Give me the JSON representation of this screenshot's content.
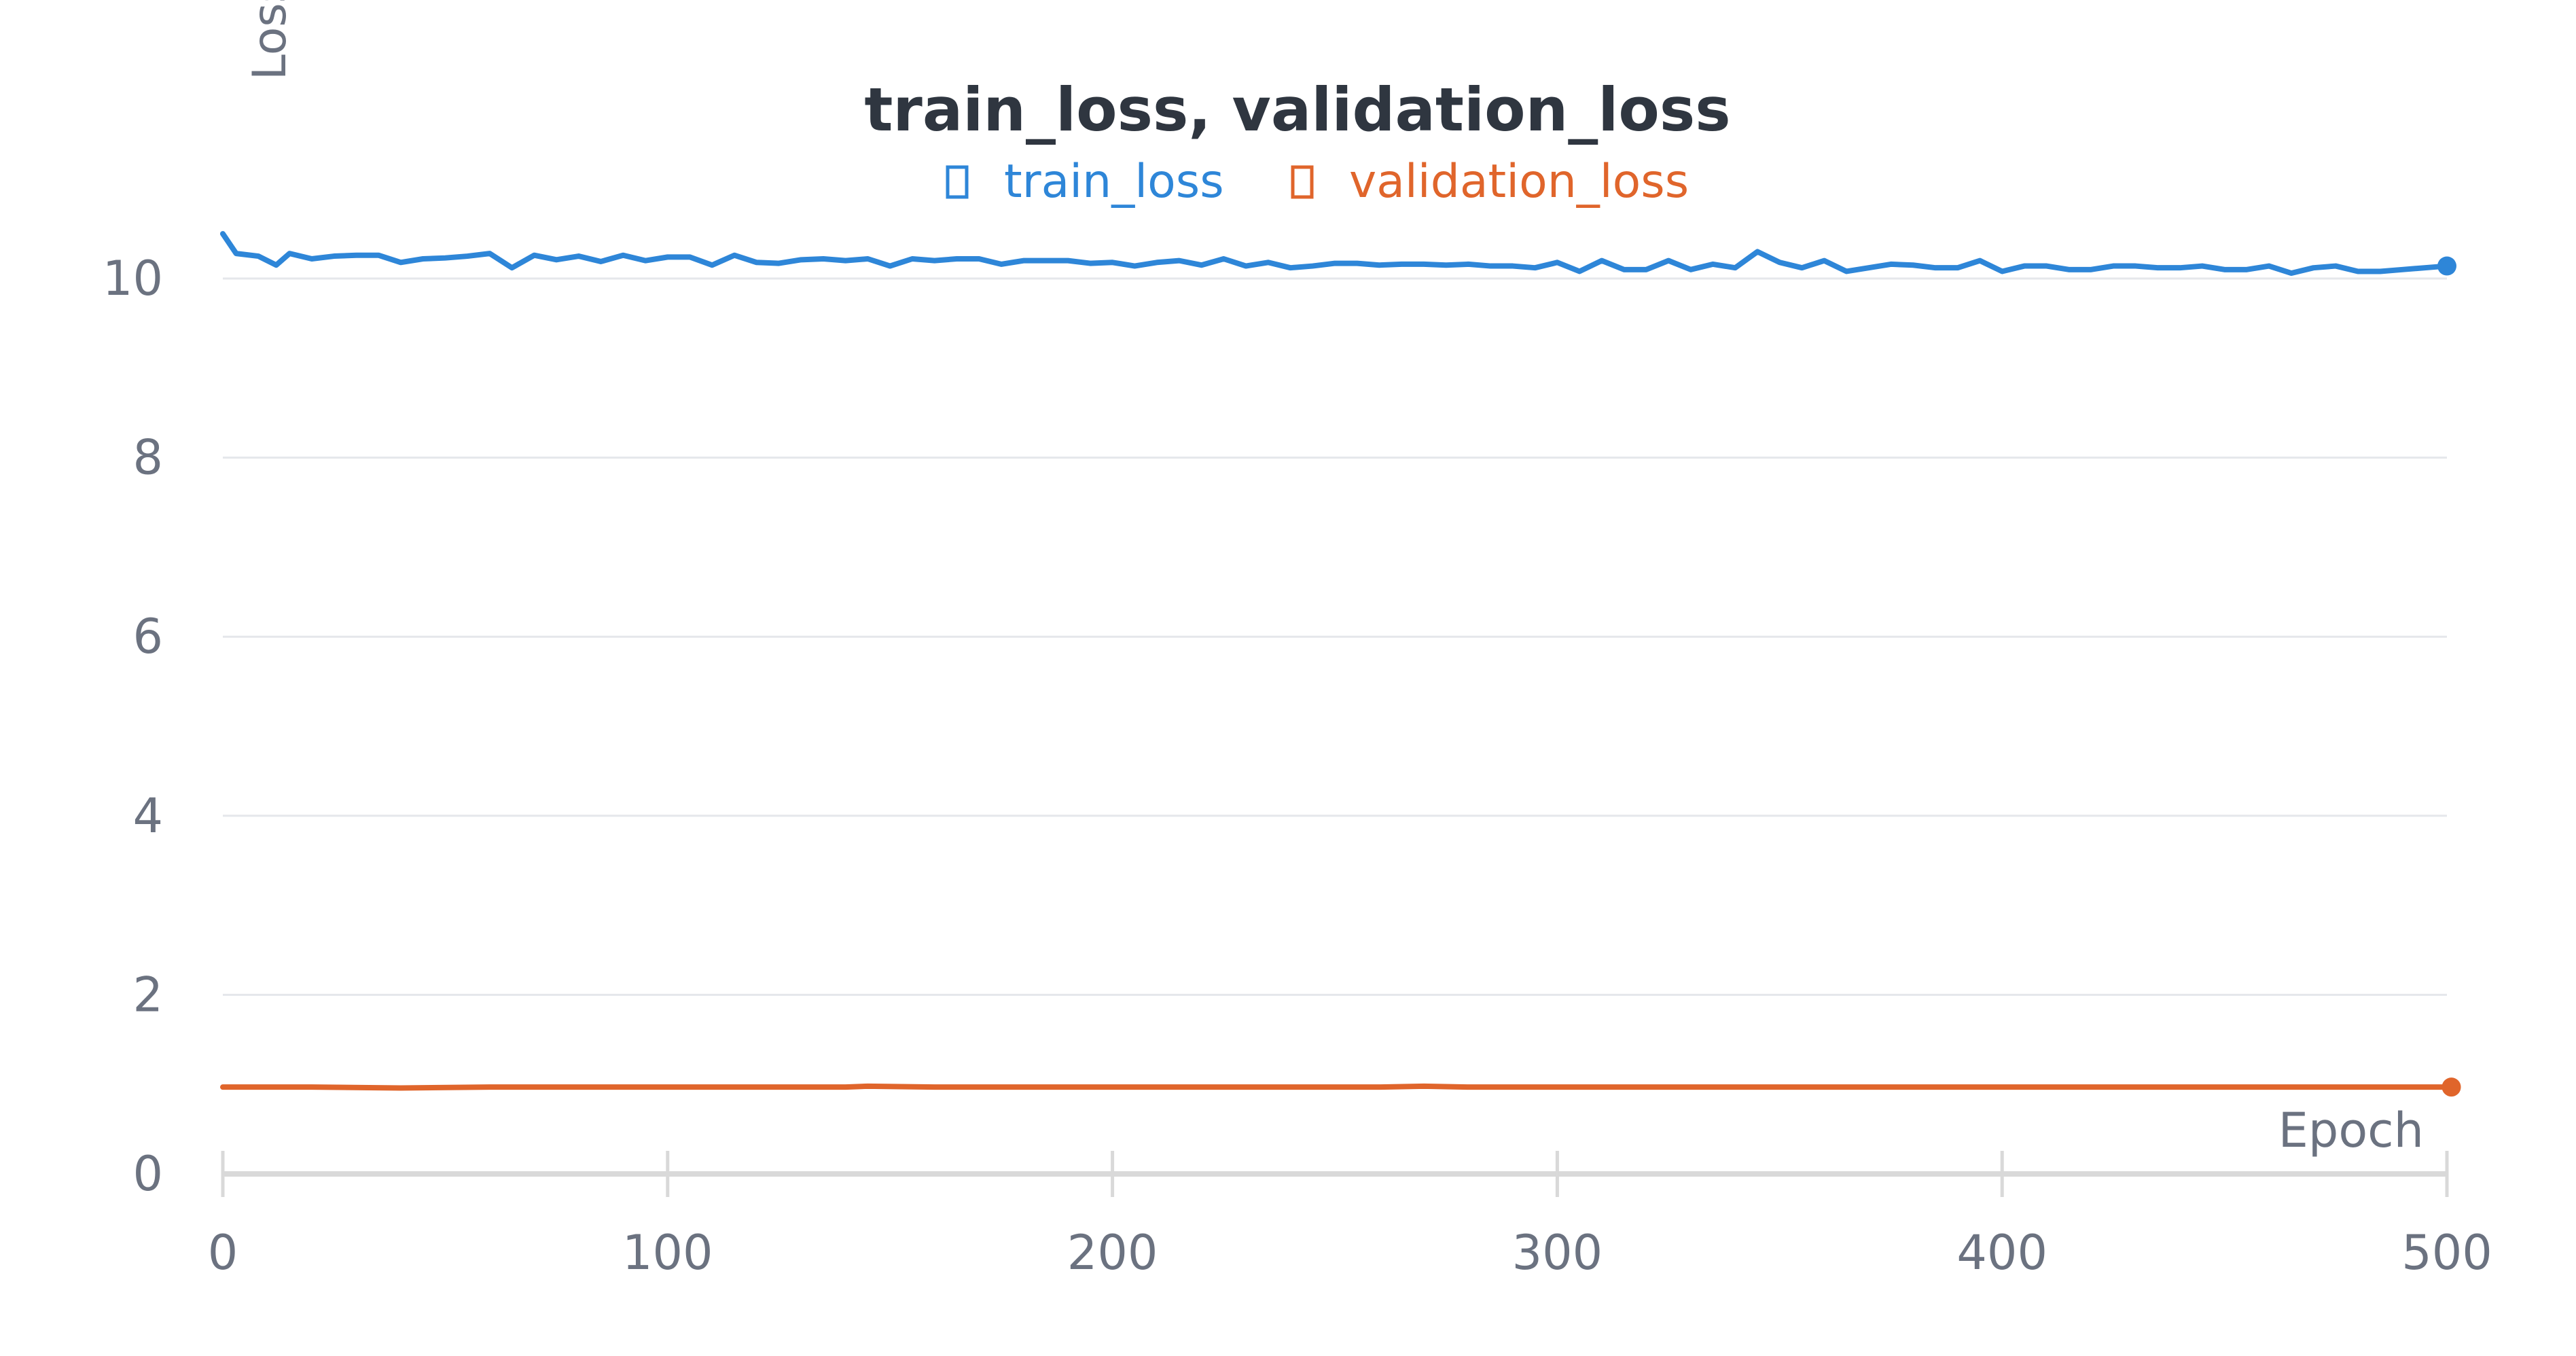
{
  "chart_data": {
    "type": "line",
    "title": "train_loss, validation_loss",
    "xlabel": "Epoch",
    "ylabel": "Loss",
    "xlim": [
      0,
      500
    ],
    "ylim": [
      0,
      10
    ],
    "x_ticks": [
      0,
      100,
      200,
      300,
      400,
      500
    ],
    "y_ticks": [
      0,
      2,
      4,
      6,
      8,
      10
    ],
    "x_tick_labels": [
      "0",
      "100",
      "200",
      "300",
      "400",
      "500"
    ],
    "y_tick_labels": [
      "0",
      "2",
      "4",
      "6",
      "8",
      "10"
    ],
    "grid": true,
    "legend_position": "top-center",
    "series": [
      {
        "name": "train_loss",
        "color": "#2e86d8",
        "x": [
          0,
          3,
          8,
          12,
          15,
          20,
          25,
          30,
          35,
          40,
          45,
          50,
          55,
          60,
          65,
          70,
          75,
          80,
          85,
          90,
          95,
          100,
          105,
          110,
          115,
          120,
          125,
          130,
          135,
          140,
          145,
          150,
          155,
          160,
          165,
          170,
          175,
          180,
          185,
          190,
          195,
          200,
          205,
          210,
          215,
          220,
          225,
          230,
          235,
          240,
          245,
          250,
          255,
          260,
          265,
          270,
          275,
          280,
          285,
          290,
          295,
          300,
          305,
          310,
          315,
          320,
          325,
          330,
          335,
          340,
          345,
          350,
          355,
          360,
          365,
          370,
          375,
          380,
          385,
          390,
          395,
          400,
          405,
          410,
          415,
          420,
          425,
          430,
          435,
          440,
          445,
          450,
          455,
          460,
          465,
          470,
          475,
          480,
          485,
          490,
          495,
          500
        ],
        "values": [
          10.5,
          10.28,
          10.25,
          10.15,
          10.28,
          10.22,
          10.25,
          10.26,
          10.26,
          10.18,
          10.22,
          10.23,
          10.25,
          10.28,
          10.12,
          10.26,
          10.21,
          10.25,
          10.19,
          10.26,
          10.2,
          10.24,
          10.24,
          10.15,
          10.26,
          10.18,
          10.17,
          10.21,
          10.22,
          10.2,
          10.22,
          10.14,
          10.22,
          10.2,
          10.22,
          10.22,
          10.16,
          10.2,
          10.2,
          10.2,
          10.17,
          10.18,
          10.14,
          10.18,
          10.2,
          10.15,
          10.22,
          10.14,
          10.18,
          10.12,
          10.14,
          10.17,
          10.17,
          10.15,
          10.16,
          10.16,
          10.15,
          10.16,
          10.14,
          10.14,
          10.12,
          10.18,
          10.08,
          10.2,
          10.1,
          10.1,
          10.2,
          10.1,
          10.16,
          10.12,
          10.3,
          10.18,
          10.12,
          10.2,
          10.08,
          10.12,
          10.16,
          10.15,
          10.12,
          10.12,
          10.2,
          10.08,
          10.14,
          10.14,
          10.1,
          10.1,
          10.14,
          10.14,
          10.12,
          10.12,
          10.14,
          10.1,
          10.1,
          10.14,
          10.06,
          10.12,
          10.14,
          10.08,
          10.08,
          10.1,
          10.12,
          10.14
        ]
      },
      {
        "name": "validation_loss",
        "color": "#e0652b",
        "x": [
          0,
          20,
          40,
          60,
          80,
          100,
          120,
          140,
          145,
          160,
          180,
          200,
          220,
          240,
          260,
          270,
          280,
          300,
          320,
          340,
          360,
          380,
          400,
          420,
          440,
          460,
          480,
          501
        ],
        "values": [
          0.97,
          0.97,
          0.96,
          0.97,
          0.97,
          0.97,
          0.97,
          0.97,
          0.98,
          0.97,
          0.97,
          0.97,
          0.97,
          0.97,
          0.97,
          0.98,
          0.97,
          0.97,
          0.97,
          0.97,
          0.97,
          0.97,
          0.97,
          0.97,
          0.97,
          0.97,
          0.97,
          0.97
        ]
      }
    ]
  }
}
